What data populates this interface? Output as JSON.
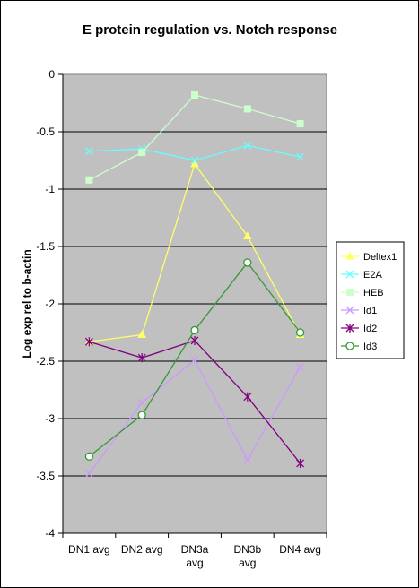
{
  "chart_data": {
    "type": "line",
    "title": "E protein regulation vs. Notch response",
    "xlabel": "",
    "ylabel": "Log exp rel to b-actin",
    "categories": [
      [
        "DN1 avg"
      ],
      [
        "DN2 avg"
      ],
      [
        "DN3a",
        "avg"
      ],
      [
        "DN3b",
        "avg"
      ],
      [
        "DN4 avg"
      ]
    ],
    "ylim": [
      -4,
      0
    ],
    "yticks": [
      0,
      -0.5,
      -1,
      -1.5,
      -2,
      -2.5,
      -3,
      -3.5,
      -4
    ],
    "ytick_labels": [
      "0",
      "-0.5",
      "-1",
      "-1.5",
      "-2",
      "-2.5",
      "-3",
      "-3.5",
      "-4"
    ],
    "grid": true,
    "plot_background": "#c0c0c0",
    "legend_position": "right",
    "series": [
      {
        "name": "Deltex1",
        "color": "#ffff66",
        "marker": "triangle",
        "values": [
          -2.33,
          -2.27,
          -0.78,
          -1.41,
          -2.27
        ]
      },
      {
        "name": "E2A",
        "color": "#66ffff",
        "marker": "x",
        "values": [
          -0.67,
          -0.65,
          -0.75,
          -0.62,
          -0.72
        ]
      },
      {
        "name": "HEB",
        "color": "#ccffcc",
        "marker": "square",
        "values": [
          -0.92,
          -0.68,
          -0.18,
          -0.3,
          -0.43
        ]
      },
      {
        "name": "Id1",
        "color": "#cc99ff",
        "marker": "x",
        "values": [
          -3.48,
          -2.86,
          -2.49,
          -3.36,
          -2.55
        ]
      },
      {
        "name": "Id2",
        "color": "#800080",
        "marker": "star",
        "values": [
          -2.33,
          -2.47,
          -2.32,
          -2.81,
          -3.39
        ]
      },
      {
        "name": "Id3",
        "color": "#339933",
        "marker": "circle",
        "values": [
          -3.33,
          -2.97,
          -2.23,
          -1.64,
          -2.25
        ]
      }
    ]
  }
}
